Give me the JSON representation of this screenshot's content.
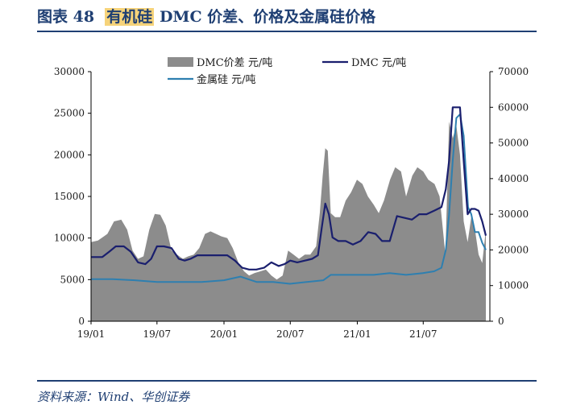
{
  "header": {
    "fig_label": "图表 48",
    "highlight": "有机硅",
    "title_rest": "DMC 价差、价格及金属硅价格"
  },
  "footer": {
    "source": "资料来源：Wind、华创证券"
  },
  "colors": {
    "title": "#1f3f73",
    "highlight": "#f6d37a",
    "spread": "#8c8c8c",
    "dmc": "#1a1f6e",
    "silicon": "#2e7fb0"
  },
  "chart_data": {
    "type": "area+line",
    "left_axis": {
      "min": 0,
      "max": 30000,
      "ticks": [
        "0",
        "5000",
        "10000",
        "15000",
        "20000",
        "25000",
        "30000"
      ]
    },
    "right_axis": {
      "min": 0,
      "max": 70000,
      "ticks": [
        "0",
        "10000",
        "20000",
        "30000",
        "40000",
        "50000",
        "60000",
        "70000"
      ]
    },
    "x_axis": {
      "start": "2019-01",
      "end": "2021-12",
      "ticks": [
        "19/01",
        "19/07",
        "20/01",
        "20/07",
        "21/01",
        "21/07"
      ]
    },
    "legend_placement": "top",
    "grid": false,
    "series": [
      {
        "name": "DMC价差 元/吨",
        "type": "area",
        "axis": "left",
        "x": [
          "2019-01-01",
          "2019-01-20",
          "2019-02-15",
          "2019-03-05",
          "2019-03-25",
          "2019-04-10",
          "2019-04-25",
          "2019-05-10",
          "2019-05-25",
          "2019-06-10",
          "2019-06-25",
          "2019-07-10",
          "2019-07-25",
          "2019-08-10",
          "2019-08-25",
          "2019-09-10",
          "2019-09-25",
          "2019-10-10",
          "2019-10-25",
          "2019-11-10",
          "2019-11-25",
          "2019-12-10",
          "2019-12-25",
          "2020-01-10",
          "2020-01-25",
          "2020-02-10",
          "2020-02-25",
          "2020-03-10",
          "2020-03-25",
          "2020-04-10",
          "2020-04-25",
          "2020-05-10",
          "2020-05-25",
          "2020-06-10",
          "2020-06-25",
          "2020-07-10",
          "2020-07-25",
          "2020-08-10",
          "2020-08-25",
          "2020-09-10",
          "2020-09-20",
          "2020-09-28",
          "2020-10-05",
          "2020-10-12",
          "2020-10-20",
          "2020-11-01",
          "2020-11-15",
          "2020-11-30",
          "2020-12-15",
          "2020-12-31",
          "2021-01-15",
          "2021-01-30",
          "2021-02-15",
          "2021-03-01",
          "2021-03-15",
          "2021-04-01",
          "2021-04-15",
          "2021-05-01",
          "2021-05-15",
          "2021-06-01",
          "2021-06-15",
          "2021-07-01",
          "2021-07-15",
          "2021-08-01",
          "2021-08-15",
          "2021-08-31",
          "2021-09-10",
          "2021-09-20",
          "2021-09-30",
          "2021-10-10",
          "2021-10-20",
          "2021-10-31",
          "2021-11-10",
          "2021-11-20",
          "2021-11-30",
          "2021-12-10",
          "2021-12-20"
        ],
        "values": [
          9500,
          9700,
          10500,
          12000,
          12200,
          11000,
          8500,
          7500,
          7800,
          11000,
          12900,
          12800,
          11500,
          8500,
          8000,
          7500,
          7800,
          8000,
          8800,
          10500,
          10800,
          10500,
          10200,
          10000,
          8800,
          7000,
          6000,
          5500,
          5800,
          6000,
          6200,
          5500,
          5000,
          5500,
          8500,
          8000,
          7500,
          8000,
          8000,
          9000,
          13000,
          17500,
          20800,
          20500,
          13000,
          12500,
          12500,
          14500,
          15500,
          17000,
          16500,
          15000,
          14000,
          13000,
          14500,
          17000,
          18500,
          18000,
          15000,
          17500,
          18500,
          18000,
          17000,
          16500,
          15000,
          8000,
          24000,
          22000,
          23500,
          20000,
          12000,
          9500,
          12500,
          11000,
          8000,
          7000,
          11000
        ]
      },
      {
        "name": "DMC 元/吨",
        "type": "line",
        "axis": "right",
        "x": [
          "2019-01-01",
          "2019-02-01",
          "2019-02-20",
          "2019-03-10",
          "2019-04-01",
          "2019-04-20",
          "2019-05-10",
          "2019-05-30",
          "2019-06-15",
          "2019-07-01",
          "2019-07-20",
          "2019-08-10",
          "2019-08-30",
          "2019-09-15",
          "2019-10-01",
          "2019-10-20",
          "2019-11-10",
          "2019-12-01",
          "2019-12-20",
          "2020-01-10",
          "2020-01-31",
          "2020-02-20",
          "2020-03-10",
          "2020-03-30",
          "2020-04-20",
          "2020-05-10",
          "2020-05-30",
          "2020-06-15",
          "2020-07-01",
          "2020-07-20",
          "2020-08-10",
          "2020-08-30",
          "2020-09-15",
          "2020-09-25",
          "2020-10-05",
          "2020-10-15",
          "2020-10-25",
          "2020-11-10",
          "2020-11-30",
          "2020-12-20",
          "2021-01-10",
          "2021-01-31",
          "2021-02-20",
          "2021-03-10",
          "2021-03-31",
          "2021-04-20",
          "2021-05-10",
          "2021-05-31",
          "2021-06-20",
          "2021-07-10",
          "2021-07-31",
          "2021-08-20",
          "2021-09-01",
          "2021-09-10",
          "2021-09-20",
          "2021-09-30",
          "2021-10-10",
          "2021-10-20",
          "2021-10-31",
          "2021-11-10",
          "2021-11-20",
          "2021-11-30",
          "2021-12-10",
          "2021-12-20"
        ],
        "values": [
          18000,
          18000,
          19500,
          21000,
          21000,
          19500,
          16500,
          16000,
          17500,
          21000,
          21000,
          20500,
          17500,
          17000,
          17500,
          18500,
          18500,
          18500,
          18500,
          18500,
          17000,
          15000,
          14500,
          14500,
          15000,
          16500,
          15500,
          16000,
          17000,
          16500,
          17000,
          17500,
          18500,
          26000,
          33000,
          30000,
          23500,
          22500,
          22500,
          21500,
          22500,
          25000,
          24500,
          22500,
          22500,
          29500,
          29000,
          28500,
          30000,
          30000,
          31000,
          32000,
          37000,
          45000,
          60000,
          60000,
          60000,
          45000,
          30000,
          31500,
          31500,
          31000,
          28000,
          24000
        ]
      },
      {
        "name": "金属硅 元/吨",
        "type": "line",
        "axis": "right",
        "x": [
          "2019-01-01",
          "2019-03-01",
          "2019-05-01",
          "2019-07-01",
          "2019-09-01",
          "2019-11-01",
          "2020-01-01",
          "2020-02-15",
          "2020-03-31",
          "2020-05-15",
          "2020-06-30",
          "2020-08-15",
          "2020-09-30",
          "2020-10-20",
          "2020-11-15",
          "2020-12-31",
          "2021-02-15",
          "2021-03-31",
          "2021-05-15",
          "2021-06-30",
          "2021-07-31",
          "2021-08-20",
          "2021-09-01",
          "2021-09-10",
          "2021-09-20",
          "2021-09-30",
          "2021-10-10",
          "2021-10-20",
          "2021-11-01",
          "2021-11-10",
          "2021-11-20",
          "2021-11-30",
          "2021-12-10",
          "2021-12-20"
        ],
        "values": [
          11800,
          11800,
          11500,
          11000,
          11000,
          11000,
          11500,
          12500,
          11000,
          11000,
          10500,
          11000,
          11500,
          13000,
          13000,
          13000,
          13000,
          13500,
          13000,
          13500,
          14000,
          15000,
          20000,
          30000,
          45000,
          57000,
          58000,
          52000,
          32000,
          30000,
          25000,
          25000,
          22000,
          20000
        ]
      }
    ]
  }
}
